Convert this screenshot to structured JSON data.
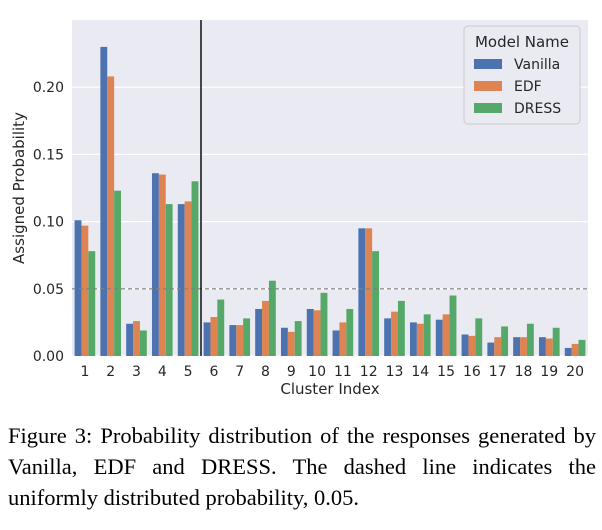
{
  "chart_data": {
    "type": "bar",
    "title": "",
    "xlabel": "Cluster Index",
    "ylabel": "Assigned Probability",
    "categories": [
      "1",
      "2",
      "3",
      "4",
      "5",
      "6",
      "7",
      "8",
      "9",
      "10",
      "11",
      "12",
      "13",
      "14",
      "15",
      "16",
      "17",
      "18",
      "19",
      "20"
    ],
    "series": [
      {
        "name": "Vanilla",
        "color": "#4c72b0",
        "values": [
          0.101,
          0.23,
          0.024,
          0.136,
          0.113,
          0.025,
          0.023,
          0.035,
          0.021,
          0.035,
          0.019,
          0.095,
          0.028,
          0.025,
          0.027,
          0.016,
          0.01,
          0.014,
          0.014,
          0.006
        ]
      },
      {
        "name": "EDF",
        "color": "#dd8452",
        "values": [
          0.097,
          0.208,
          0.026,
          0.135,
          0.115,
          0.029,
          0.023,
          0.041,
          0.018,
          0.034,
          0.025,
          0.095,
          0.033,
          0.024,
          0.031,
          0.015,
          0.014,
          0.014,
          0.013,
          0.009
        ]
      },
      {
        "name": "DRESS",
        "color": "#55a868",
        "values": [
          0.078,
          0.123,
          0.019,
          0.113,
          0.13,
          0.042,
          0.028,
          0.056,
          0.026,
          0.047,
          0.035,
          0.078,
          0.041,
          0.031,
          0.045,
          0.028,
          0.022,
          0.024,
          0.021,
          0.012
        ]
      }
    ],
    "ylim": [
      0,
      0.25
    ],
    "yticks": [
      0.0,
      0.05,
      0.1,
      0.15,
      0.2
    ],
    "ytick_labels": [
      "0.00",
      "0.05",
      "0.10",
      "0.15",
      "0.20"
    ],
    "reference_line": {
      "value": 0.05,
      "style": "dashed"
    },
    "divider_after_category": "5",
    "grid": true,
    "legend": {
      "title": "Model Name",
      "placement": "top-right"
    }
  },
  "caption": "Figure 3: Probability distribution of the responses generated by Vanilla, EDF and DRESS. The dashed line indicates the uniformly distributed probability, 0.05."
}
